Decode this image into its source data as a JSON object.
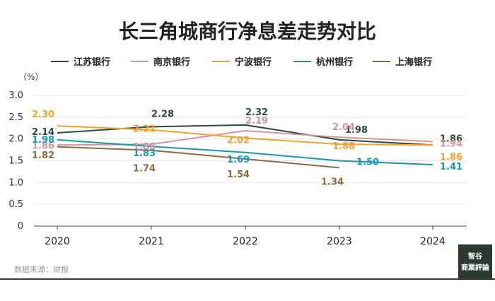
{
  "chart_data": {
    "type": "line",
    "title": "长三角城商行净息差走势对比",
    "unit_label": "（%）",
    "x": [
      "2020",
      "2021",
      "2022",
      "2023",
      "2024"
    ],
    "ylim": [
      0,
      3.0
    ],
    "yticks": [
      "0",
      "0.5",
      "1.0",
      "1.5",
      "2.0",
      "2.5",
      "3.0"
    ],
    "grid": true,
    "legend_position": "top",
    "series": [
      {
        "name": "江苏银行",
        "color": "#2e4a3d",
        "values": [
          2.14,
          2.28,
          2.32,
          1.98,
          1.86
        ]
      },
      {
        "name": "南京银行",
        "color": "#d4959a",
        "values": [
          1.86,
          1.88,
          2.19,
          2.04,
          1.94
        ]
      },
      {
        "name": "宁波银行",
        "color": "#f0a22e",
        "values": [
          2.3,
          2.21,
          2.02,
          1.88,
          1.86
        ]
      },
      {
        "name": "杭州银行",
        "color": "#1797b0",
        "values": [
          1.98,
          1.83,
          1.69,
          1.5,
          1.41
        ]
      },
      {
        "name": "上海银行",
        "color": "#8a6a3f",
        "values": [
          1.82,
          1.74,
          1.54,
          1.34,
          null
        ]
      }
    ],
    "data_labels": [
      [
        "2.14",
        "2.28",
        "2.32",
        "1.98",
        "1.86"
      ],
      [
        "1.86",
        "1.88",
        "2.19",
        "2.04",
        "1.94"
      ],
      [
        "2.30",
        "2.21",
        "2.02",
        "1.88",
        "1.86"
      ],
      [
        "1.98",
        "1.83",
        "1.69",
        "1.50",
        "1.41"
      ],
      [
        "1.82",
        "1.74",
        "1.54",
        "1.34",
        ""
      ]
    ]
  },
  "source_text": "数据来源：财报",
  "logo": {
    "line1": "智谷",
    "line2": "商業評論",
    "bg_color": "#2b3a2e"
  },
  "footer_line_color": "#2b3a2e"
}
